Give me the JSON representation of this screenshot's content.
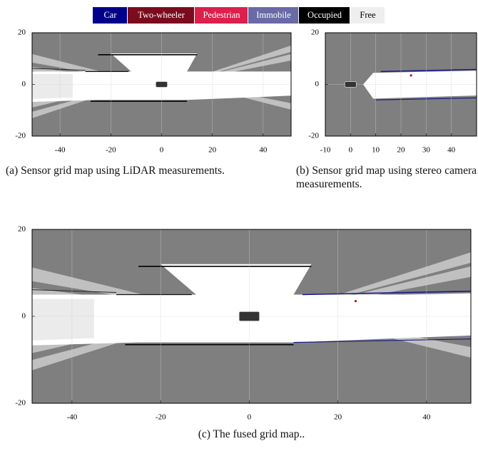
{
  "legend": [
    {
      "label": "Car",
      "color": "#00008b"
    },
    {
      "label": "Two-wheeler",
      "color": "#7a0c1e"
    },
    {
      "label": "Pedestrian",
      "color": "#dc1f4b"
    },
    {
      "label": "Immobile",
      "color": "#6a6aa6"
    },
    {
      "label": "Occupied",
      "color": "#000000"
    },
    {
      "label": "Free",
      "color": "#eeeeee"
    }
  ],
  "panels": [
    {
      "xlim": [
        -51,
        51
      ],
      "ylim": [
        -20,
        20
      ],
      "xticks": [
        -40,
        -20,
        0,
        20,
        40
      ],
      "yticks": [
        -20,
        0,
        20
      ],
      "caption": "(a) Sensor grid map using LiDAR measurements."
    },
    {
      "xlim": [
        -10,
        50
      ],
      "ylim": [
        -20,
        20
      ],
      "xticks": [
        -10,
        0,
        10,
        20,
        30,
        40
      ],
      "yticks": [
        -20,
        0,
        20
      ],
      "caption": "(b) Sensor grid map using stereo camera measurements."
    },
    {
      "xlim": [
        -49,
        50
      ],
      "ylim": [
        -20,
        20
      ],
      "xticks": [
        -40,
        -20,
        0,
        20,
        40
      ],
      "yticks": [
        -20,
        0,
        20
      ],
      "caption": "(c) The fused grid map.."
    }
  ]
}
